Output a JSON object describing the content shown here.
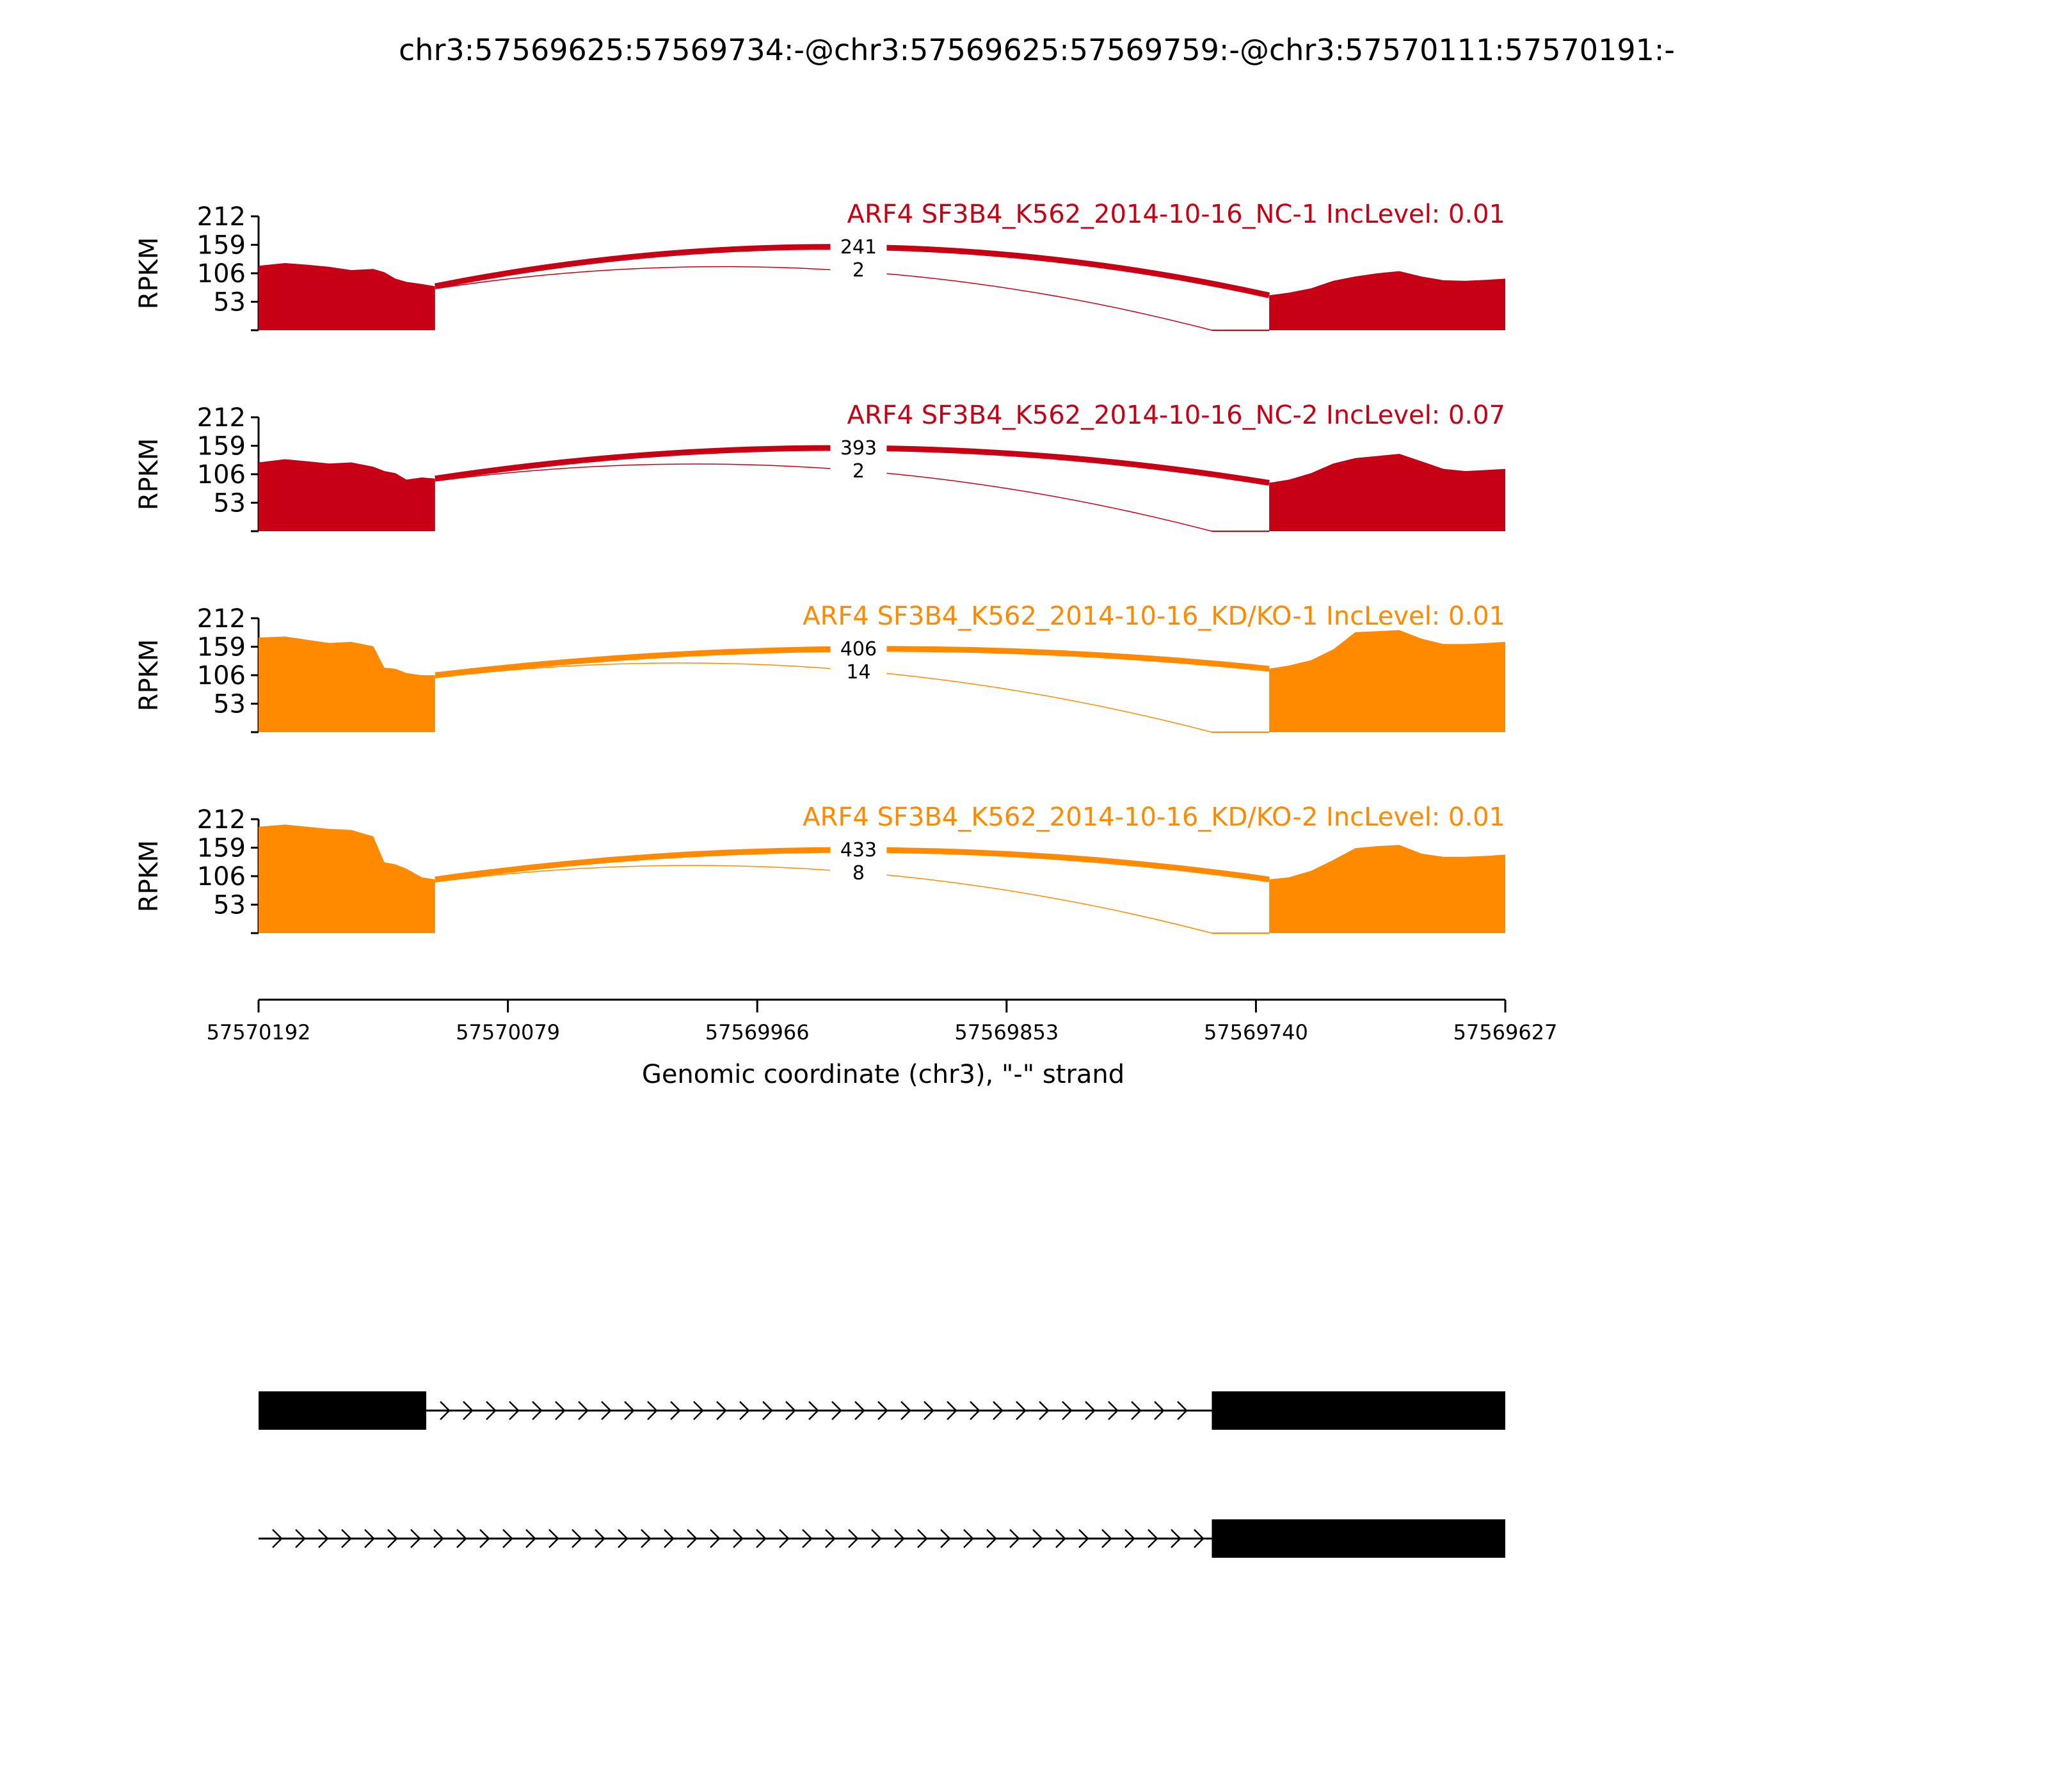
{
  "chart_data": {
    "type": "area",
    "title": "chr3:57569625:57569734:-@chr3:57569625:57569759:-@chr3:57570111:57570191:-",
    "ylabel": "RPKM",
    "xlabel": "Genomic coordinate (chr3), \"-\" strand",
    "ylim": [
      0,
      212
    ],
    "yticks": [
      53,
      106,
      159,
      212
    ],
    "xlim": [
      57570192,
      57569627
    ],
    "xticks": [
      57570192,
      57570079,
      57569966,
      57569853,
      57569740,
      57569627
    ],
    "grid": false,
    "colors": {
      "nc": "#c80016",
      "kd": "#ff8a00"
    },
    "exons": {
      "left": [
        57570192,
        57570112
      ],
      "middle": [
        57569760,
        57569735
      ],
      "right": [
        57569734,
        57569627
      ]
    },
    "series": [
      {
        "name": "ARF4 SF3B4_K562_2014-10-16_NC-1 IncLevel: 0.01",
        "color": "#c80016",
        "junction_counts": [
          "241",
          "2"
        ],
        "left_profile": [
          [
            57570192,
            120
          ],
          [
            57570180,
            125
          ],
          [
            57570170,
            122
          ],
          [
            57570160,
            118
          ],
          [
            57570150,
            112
          ],
          [
            57570140,
            114
          ],
          [
            57570135,
            108
          ],
          [
            57570130,
            96
          ],
          [
            57570125,
            90
          ],
          [
            57570118,
            86
          ],
          [
            57570112,
            82
          ]
        ],
        "right_profile": [
          [
            57569734,
            65
          ],
          [
            57569725,
            70
          ],
          [
            57569715,
            78
          ],
          [
            57569705,
            92
          ],
          [
            57569695,
            100
          ],
          [
            57569685,
            106
          ],
          [
            57569675,
            110
          ],
          [
            57569665,
            100
          ],
          [
            57569655,
            93
          ],
          [
            57569645,
            92
          ],
          [
            57569635,
            94
          ],
          [
            57569627,
            96
          ]
        ]
      },
      {
        "name": "ARF4 SF3B4_K562_2014-10-16_NC-2 IncLevel: 0.07",
        "color": "#c80016",
        "junction_counts": [
          "393",
          "2"
        ],
        "left_profile": [
          [
            57570192,
            128
          ],
          [
            57570180,
            134
          ],
          [
            57570170,
            130
          ],
          [
            57570160,
            126
          ],
          [
            57570150,
            128
          ],
          [
            57570140,
            120
          ],
          [
            57570135,
            112
          ],
          [
            57570130,
            108
          ],
          [
            57570125,
            96
          ],
          [
            57570118,
            100
          ],
          [
            57570112,
            98
          ]
        ],
        "right_profile": [
          [
            57569734,
            90
          ],
          [
            57569725,
            96
          ],
          [
            57569715,
            108
          ],
          [
            57569705,
            126
          ],
          [
            57569695,
            136
          ],
          [
            57569685,
            140
          ],
          [
            57569675,
            144
          ],
          [
            57569665,
            130
          ],
          [
            57569655,
            116
          ],
          [
            57569645,
            112
          ],
          [
            57569635,
            114
          ],
          [
            57569627,
            116
          ]
        ]
      },
      {
        "name": "ARF4 SF3B4_K562_2014-10-16_KD/KO-1 IncLevel: 0.01",
        "color": "#ff8a00",
        "junction_counts": [
          "406",
          "14"
        ],
        "left_profile": [
          [
            57570192,
            176
          ],
          [
            57570180,
            178
          ],
          [
            57570170,
            172
          ],
          [
            57570160,
            166
          ],
          [
            57570150,
            168
          ],
          [
            57570140,
            160
          ],
          [
            57570135,
            120
          ],
          [
            57570130,
            118
          ],
          [
            57570125,
            110
          ],
          [
            57570118,
            106
          ],
          [
            57570112,
            106
          ]
        ],
        "right_profile": [
          [
            57569734,
            118
          ],
          [
            57569725,
            124
          ],
          [
            57569715,
            134
          ],
          [
            57569705,
            154
          ],
          [
            57569695,
            186
          ],
          [
            57569685,
            188
          ],
          [
            57569675,
            190
          ],
          [
            57569665,
            174
          ],
          [
            57569655,
            164
          ],
          [
            57569645,
            164
          ],
          [
            57569635,
            166
          ],
          [
            57569627,
            168
          ]
        ]
      },
      {
        "name": "ARF4 SF3B4_K562_2014-10-16_KD/KO-2 IncLevel: 0.01",
        "color": "#ff8a00",
        "junction_counts": [
          "433",
          "8"
        ],
        "left_profile": [
          [
            57570192,
            198
          ],
          [
            57570180,
            202
          ],
          [
            57570170,
            198
          ],
          [
            57570160,
            194
          ],
          [
            57570150,
            192
          ],
          [
            57570140,
            180
          ],
          [
            57570135,
            132
          ],
          [
            57570130,
            128
          ],
          [
            57570125,
            120
          ],
          [
            57570118,
            104
          ],
          [
            57570112,
            100
          ]
        ],
        "right_profile": [
          [
            57569734,
            100
          ],
          [
            57569725,
            104
          ],
          [
            57569715,
            116
          ],
          [
            57569705,
            136
          ],
          [
            57569695,
            158
          ],
          [
            57569685,
            162
          ],
          [
            57569675,
            164
          ],
          [
            57569665,
            148
          ],
          [
            57569655,
            142
          ],
          [
            57569645,
            142
          ],
          [
            57569635,
            144
          ],
          [
            57569627,
            146
          ]
        ]
      }
    ],
    "isoforms": [
      {
        "exons": [
          [
            57570192,
            57570116
          ],
          [
            57569760,
            57569627
          ]
        ],
        "intron": [
          57570116,
          57569760
        ]
      },
      {
        "exons": [
          [
            57569760,
            57569627
          ]
        ],
        "intron": [
          57570192,
          57569760
        ]
      }
    ]
  }
}
